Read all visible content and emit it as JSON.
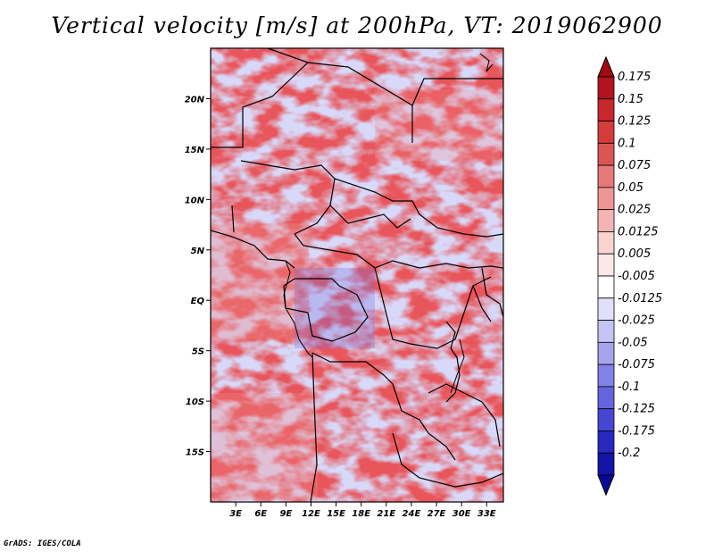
{
  "title": "Vertical velocity [m/s] at 200hPa, VT: 2019062900",
  "credit": "GrADS: IGES/COLA",
  "map": {
    "lon_range": [
      0,
      35
    ],
    "lat_range": [
      -20,
      25
    ],
    "x_ticks": [
      {
        "value": 3,
        "label": "3E"
      },
      {
        "value": 6,
        "label": "6E"
      },
      {
        "value": 9,
        "label": "9E"
      },
      {
        "value": 12,
        "label": "12E"
      },
      {
        "value": 15,
        "label": "15E"
      },
      {
        "value": 18,
        "label": "18E"
      },
      {
        "value": 21,
        "label": "21E"
      },
      {
        "value": 24,
        "label": "24E"
      },
      {
        "value": 27,
        "label": "27E"
      },
      {
        "value": 30,
        "label": "30E"
      },
      {
        "value": 33,
        "label": "33E"
      }
    ],
    "y_ticks": [
      {
        "value": 20,
        "label": "20N"
      },
      {
        "value": 15,
        "label": "15N"
      },
      {
        "value": 10,
        "label": "10N"
      },
      {
        "value": 5,
        "label": "5N"
      },
      {
        "value": 0,
        "label": "EQ"
      },
      {
        "value": -5,
        "label": "5S"
      },
      {
        "value": -10,
        "label": "10S"
      },
      {
        "value": -15,
        "label": "15S"
      }
    ]
  },
  "colorbar": {
    "levels": [
      {
        "label": "0.175",
        "color": "#b0141e"
      },
      {
        "label": "0.15",
        "color": "#c8282d"
      },
      {
        "label": "0.125",
        "color": "#d43c3c"
      },
      {
        "label": "0.1",
        "color": "#dc5555"
      },
      {
        "label": "0.075",
        "color": "#e67878"
      },
      {
        "label": "0.05",
        "color": "#ee9696"
      },
      {
        "label": "0.025",
        "color": "#f5b4b4"
      },
      {
        "label": "0.0125",
        "color": "#fad2d2"
      },
      {
        "label": "0.005",
        "color": "#fde8e8"
      },
      {
        "label": "-0.005",
        "color": "#ffffff"
      },
      {
        "label": "-0.0125",
        "color": "#e0e0fa"
      },
      {
        "label": "-0.025",
        "color": "#c4c4f5"
      },
      {
        "label": "-0.05",
        "color": "#a5a5ee"
      },
      {
        "label": "-0.075",
        "color": "#8282e6"
      },
      {
        "label": "-0.1",
        "color": "#6464dc"
      },
      {
        "label": "-0.125",
        "color": "#4646d2"
      },
      {
        "label": "-0.175",
        "color": "#2828c0"
      },
      {
        "label": "-0.2",
        "color": "#1414a5"
      }
    ],
    "top_arrow_color": "#a00a14",
    "bottom_arrow_color": "#0a0a96"
  }
}
